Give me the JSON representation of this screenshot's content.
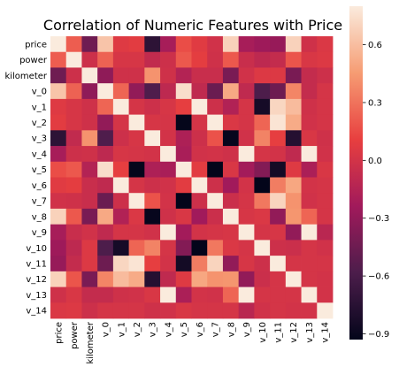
{
  "chart_data": {
    "type": "heatmap",
    "title": "Correlation of Numeric Features with Price",
    "features": [
      "price",
      "power",
      "kilometer",
      "v_0",
      "v_1",
      "v_2",
      "v_3",
      "v_4",
      "v_5",
      "v_6",
      "v_7",
      "v_8",
      "v_9",
      "v_10",
      "v_11",
      "v_12",
      "v_13",
      "v_14"
    ],
    "colorbar": {
      "min": -0.93,
      "max": 0.8,
      "ticks": [
        0.6,
        0.3,
        0.0,
        -0.3,
        -0.6,
        -0.9
      ],
      "tick_labels": [
        "0.6",
        "0.3",
        "0.0",
        "−0.3",
        "−0.6",
        "−0.9"
      ]
    },
    "colors": [
      "#03051a",
      "#4c1d4b",
      "#a11a5b",
      "#e83f3f",
      "#f69c73",
      "#faebdd"
    ],
    "matrix": [
      [
        1.0,
        0.22,
        -0.44,
        0.63,
        0.06,
        0.08,
        -0.73,
        -0.21,
        0.16,
        0.07,
        -0.01,
        0.69,
        -0.21,
        -0.25,
        -0.28,
        0.69,
        -0.02,
        0.04
      ],
      [
        0.22,
        1.0,
        -0.03,
        0.24,
        0.02,
        0.02,
        -0.08,
        -0.03,
        0.2,
        0.09,
        -0.02,
        0.2,
        -0.05,
        -0.1,
        -0.07,
        0.19,
        0.03,
        0.05
      ],
      [
        -0.44,
        -0.03,
        1.0,
        -0.31,
        -0.02,
        -0.02,
        0.42,
        -0.02,
        -0.15,
        -0.05,
        -0.05,
        -0.4,
        -0.01,
        0.05,
        0.05,
        -0.4,
        -0.07,
        -0.03
      ],
      [
        0.63,
        0.24,
        -0.31,
        1.0,
        0.25,
        -0.3,
        -0.57,
        -0.1,
        0.74,
        -0.09,
        -0.46,
        0.51,
        -0.09,
        -0.58,
        -0.45,
        0.37,
        -0.07,
        0.01
      ],
      [
        0.06,
        0.02,
        -0.02,
        0.25,
        1.0,
        0.01,
        -0.03,
        0.02,
        0.1,
        0.8,
        -0.03,
        -0.16,
        0.01,
        -0.84,
        0.71,
        0.59,
        -0.02,
        0.01
      ],
      [
        0.08,
        0.02,
        -0.02,
        -0.3,
        0.01,
        1.0,
        0.02,
        0.01,
        -0.92,
        0.01,
        0.8,
        0.04,
        0.01,
        0.25,
        0.77,
        0.52,
        -0.01,
        0.01
      ],
      [
        -0.73,
        -0.08,
        0.42,
        -0.57,
        -0.03,
        0.02,
        1.0,
        0.0,
        -0.18,
        -0.03,
        0.18,
        -0.91,
        -0.01,
        0.36,
        0.1,
        -0.77,
        0.03,
        -0.02
      ],
      [
        -0.21,
        -0.03,
        -0.02,
        -0.1,
        0.02,
        0.01,
        0.0,
        1.0,
        -0.2,
        -0.01,
        0.0,
        -0.02,
        0.85,
        0.01,
        0.0,
        -0.09,
        0.8,
        -0.01
      ],
      [
        0.16,
        0.2,
        -0.15,
        0.74,
        0.1,
        -0.92,
        -0.18,
        -0.2,
        1.0,
        0.08,
        -0.94,
        0.03,
        -0.23,
        -0.36,
        -0.85,
        0.06,
        -0.19,
        0.03
      ],
      [
        0.07,
        0.09,
        -0.05,
        -0.09,
        0.8,
        0.01,
        -0.03,
        -0.01,
        0.08,
        1.0,
        -0.03,
        -0.24,
        0.0,
        -0.93,
        0.34,
        0.5,
        0.0,
        0.01
      ],
      [
        -0.01,
        -0.02,
        -0.05,
        -0.46,
        -0.03,
        0.8,
        0.18,
        0.0,
        -0.94,
        -0.03,
        1.0,
        -0.04,
        0.01,
        0.32,
        0.7,
        0.42,
        -0.01,
        0.01
      ],
      [
        0.69,
        0.2,
        -0.4,
        0.51,
        -0.16,
        0.04,
        -0.91,
        -0.02,
        0.03,
        -0.24,
        -0.04,
        1.0,
        0.02,
        0.04,
        -0.3,
        0.43,
        0.25,
        0.01
      ],
      [
        -0.21,
        -0.05,
        -0.01,
        -0.09,
        0.01,
        0.01,
        -0.01,
        0.85,
        -0.23,
        0.0,
        0.01,
        0.02,
        1.0,
        0.01,
        0.02,
        -0.3,
        0.89,
        -0.12
      ],
      [
        -0.25,
        -0.1,
        0.05,
        -0.58,
        -0.84,
        0.25,
        0.36,
        0.01,
        -0.36,
        -0.93,
        0.32,
        0.04,
        0.01,
        1.0,
        -0.03,
        -0.04,
        0.01,
        -0.01
      ],
      [
        -0.28,
        -0.07,
        0.05,
        -0.45,
        0.71,
        0.77,
        0.1,
        0.0,
        -0.85,
        0.34,
        0.7,
        -0.3,
        0.02,
        -0.03,
        1.0,
        0.01,
        0.01,
        0.01
      ],
      [
        0.69,
        0.19,
        -0.4,
        0.37,
        0.59,
        0.52,
        -0.77,
        -0.09,
        0.06,
        0.5,
        0.42,
        0.43,
        -0.3,
        -0.04,
        0.01,
        1.0,
        0.01,
        0.0
      ],
      [
        -0.02,
        0.03,
        -0.07,
        -0.07,
        -0.02,
        -0.01,
        0.03,
        0.8,
        -0.19,
        0.0,
        -0.01,
        0.25,
        0.89,
        0.01,
        0.01,
        0.01,
        1.0,
        0.0
      ],
      [
        0.04,
        0.05,
        -0.03,
        0.01,
        0.01,
        0.01,
        -0.02,
        -0.01,
        0.03,
        0.01,
        0.01,
        0.01,
        -0.12,
        -0.01,
        0.01,
        0.0,
        0.0,
        1.0
      ]
    ]
  }
}
